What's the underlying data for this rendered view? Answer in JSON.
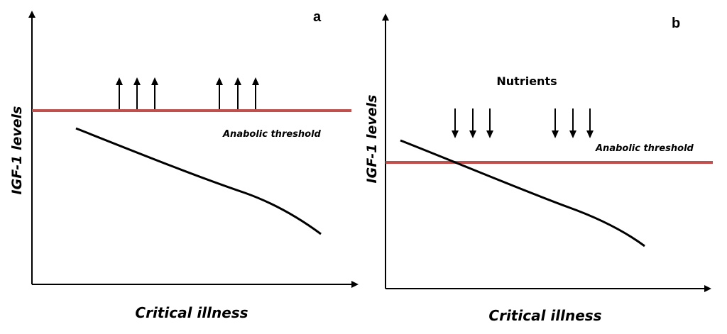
{
  "panels": [
    {
      "letter": "a",
      "y_label": "IGF-1 levels",
      "x_label": "Critical illness",
      "threshold_label": "Anabolic threshold",
      "threshold_color": "#c0504d",
      "arrow_direction": "up",
      "arrow_groups": 2,
      "arrows_per_group": 3
    },
    {
      "letter": "b",
      "y_label": "IGF-1 levels",
      "x_label": "Critical illness",
      "threshold_label": "Anabolic threshold",
      "threshold_color": "#c0504d",
      "nutrients_label": "Nutrients",
      "arrow_direction": "down",
      "arrow_groups": 2,
      "arrows_per_group": 3
    }
  ]
}
